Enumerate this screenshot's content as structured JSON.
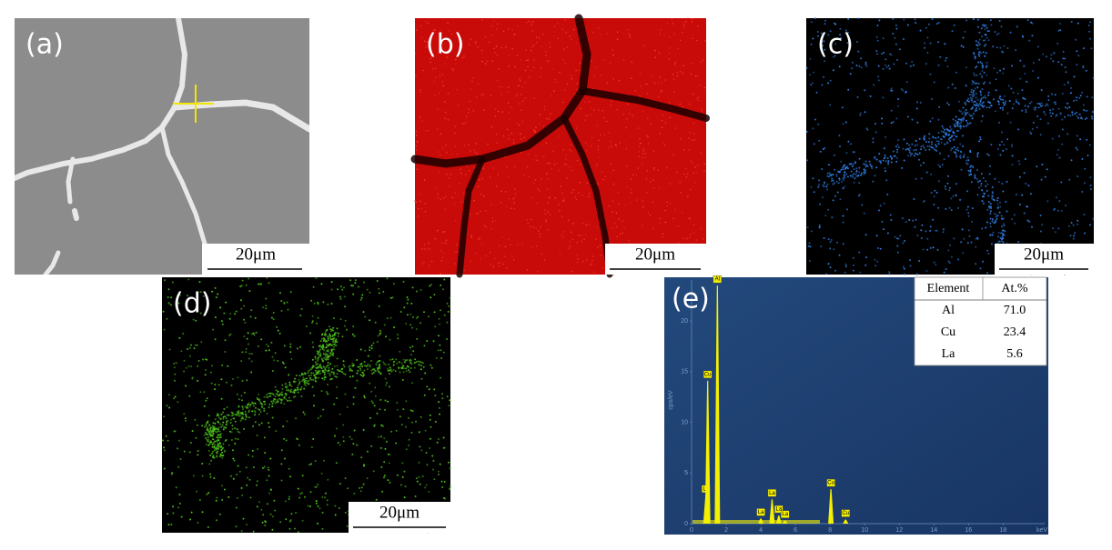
{
  "panels": [
    {
      "label": "(a)",
      "scale_bar": "20μm"
    },
    {
      "label": "(b)",
      "scale_bar": "20μm"
    },
    {
      "label": "(c)",
      "scale_bar": "20μm"
    },
    {
      "label": "(d)",
      "scale_bar": "20μm"
    },
    {
      "label": "(e)"
    }
  ],
  "spectrum": {
    "y_label": "cps/eV",
    "x_label": "keV",
    "xlim": [
      0,
      20.4
    ],
    "ylim": [
      0,
      24.5
    ],
    "xticks": [
      0,
      2,
      4,
      6,
      8,
      10,
      12,
      14,
      16,
      18
    ],
    "yticks": [
      0,
      5,
      10,
      15,
      20
    ],
    "peaks": [
      {
        "label": "La",
        "x": 0.83,
        "height": 2.8
      },
      {
        "label": "Cu",
        "x": 0.93,
        "height": 14.1
      },
      {
        "label": "Al",
        "x": 1.49,
        "height": 23.5
      },
      {
        "label": "La",
        "x": 4.0,
        "height": 0.5
      },
      {
        "label": "La",
        "x": 4.65,
        "height": 2.4
      },
      {
        "label": "La",
        "x": 5.04,
        "height": 0.8
      },
      {
        "label": "La",
        "x": 5.4,
        "height": 0.3
      },
      {
        "label": "Cu",
        "x": 8.05,
        "height": 3.4
      },
      {
        "label": "Cu",
        "x": 8.9,
        "height": 0.4
      }
    ]
  },
  "table": {
    "header": [
      "Element",
      "At.%"
    ],
    "rows": [
      [
        "Al",
        "71.0"
      ],
      [
        "Cu",
        "23.4"
      ],
      [
        "La",
        "5.6"
      ]
    ]
  }
}
